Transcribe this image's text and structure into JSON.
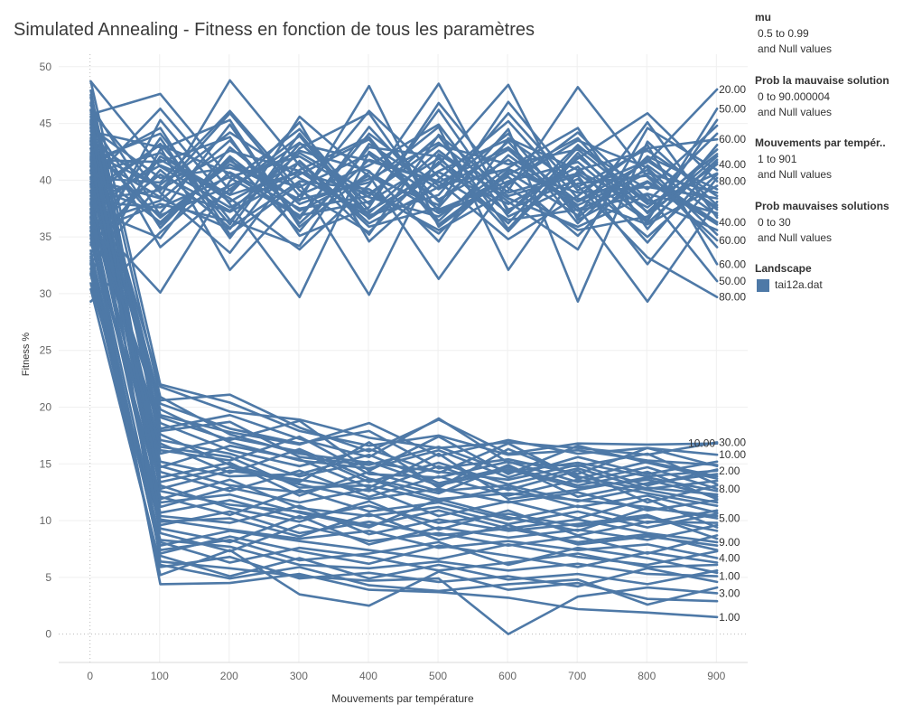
{
  "legend": [
    {
      "title": "mu",
      "lines": [
        "0.5 to 0.99",
        "and Null values"
      ]
    },
    {
      "title": "Prob la mauvaise solution",
      "lines": [
        "0 to 90.000004",
        "and Null values"
      ]
    },
    {
      "title": "Mouvements par tempér..",
      "lines": [
        "1 to 901",
        "and Null values"
      ]
    },
    {
      "title": "Prob mauvaises solutions",
      "lines": [
        "0 to 30",
        "and Null values"
      ]
    }
  ],
  "color_legend": {
    "title": "Landscape",
    "items": [
      {
        "label": "tai12a.dat",
        "color": "#4e79a7"
      }
    ]
  },
  "chart_data": {
    "type": "line",
    "title": "Simulated Annealing - Fitness en fonction de tous les paramètres",
    "xlabel": "Mouvements par température",
    "ylabel": "Fitness %",
    "x_ticks": [
      0,
      100,
      200,
      300,
      400,
      500,
      600,
      700,
      800,
      900
    ],
    "y_ticks": [
      0,
      5,
      10,
      15,
      20,
      25,
      30,
      35,
      40,
      45,
      50
    ],
    "xlim": [
      -45,
      945
    ],
    "ylim": [
      -2.5,
      51.1
    ],
    "grid": true,
    "line_color": "#4e79a7",
    "x": [
      1,
      101,
      201,
      301,
      401,
      501,
      601,
      701,
      801,
      901
    ],
    "series": [
      {
        "label": "20.00",
        "values": [
          45.8,
          47.6,
          40.2,
          36.8,
          44.1,
          39.5,
          41.0,
          38.2,
          41.6,
          48.0
        ]
      },
      {
        "label": "50.00",
        "values": [
          42.1,
          38.5,
          48.8,
          41.3,
          35.2,
          44.0,
          38.9,
          40.6,
          36.4,
          46.3
        ]
      },
      {
        "label": "60.00",
        "values": [
          38.6,
          43.2,
          36.1,
          45.6,
          40.3,
          37.8,
          46.9,
          39.4,
          42.8,
          43.6
        ]
      },
      {
        "label": "40.00",
        "values": [
          40.9,
          36.3,
          41.7,
          38.2,
          48.3,
          35.9,
          40.5,
          43.7,
          37.1,
          41.4
        ]
      },
      {
        "label": "80.00",
        "values": [
          37.2,
          41.8,
          38.4,
          33.9,
          39.6,
          48.5,
          37.2,
          41.9,
          45.9,
          39.9
        ]
      },
      {
        "label": "40.00",
        "values": [
          43.5,
          39.2,
          42.6,
          40.8,
          36.7,
          41.4,
          48.4,
          36.5,
          39.8,
          36.3
        ]
      },
      {
        "label": "60.00",
        "values": [
          35.8,
          40.5,
          37.3,
          42.4,
          38.9,
          35.6,
          39.1,
          48.2,
          40.3,
          34.7
        ]
      },
      {
        "label": "60.00",
        "values": [
          39.4,
          37.1,
          44.9,
          36.2,
          41.8,
          39.9,
          34.8,
          38.6,
          43.1,
          32.6
        ]
      },
      {
        "label": "50.00",
        "values": [
          41.3,
          44.6,
          35.2,
          39.7,
          29.9,
          42.3,
          38.4,
          35.9,
          38.7,
          31.1
        ]
      },
      {
        "label": "80.00",
        "values": [
          36.7,
          30.1,
          39.9,
          44.5,
          37.3,
          40.8,
          43.6,
          39.5,
          33.2,
          29.7
        ]
      },
      {
        "values": [
          48.7,
          41.2,
          37.6,
          40.9,
          43.8,
          36.4,
          42.2,
          37.8,
          40.6,
          38.9
        ]
      },
      {
        "values": [
          29.3,
          35.4,
          40.7,
          37.5,
          38.6,
          43.9,
          35.7,
          42.4,
          36.2,
          41.8
        ]
      },
      {
        "values": [
          46.1,
          38.9,
          33.6,
          41.7,
          36.2,
          39.4,
          44.1,
          36.7,
          41.9,
          37.4
        ]
      },
      {
        "values": [
          31.8,
          42.7,
          45.3,
          35.9,
          40.7,
          37.1,
          39.6,
          44.2,
          38.3,
          35.6
        ]
      },
      {
        "values": [
          44.9,
          34.1,
          39.2,
          43.3,
          37.9,
          46.2,
          37.4,
          40.1,
          35.0,
          40.5
        ]
      },
      {
        "values": [
          33.5,
          45.3,
          37.9,
          29.7,
          42.5,
          38.3,
          41.8,
          37.6,
          29.3,
          38.1
        ]
      },
      {
        "values": [
          40.2,
          39.8,
          46.1,
          39.1,
          35.4,
          41.6,
          36.2,
          42.9,
          39.2,
          44.8
        ]
      },
      {
        "values": [
          35.1,
          43.7,
          34.9,
          42.8,
          45.9,
          37.2,
          40.3,
          35.1,
          41.3,
          36.9
        ]
      },
      {
        "values": [
          42.8,
          36.7,
          41.4,
          38.3,
          39.8,
          44.7,
          32.1,
          40.8,
          37.6,
          42.3
        ]
      },
      {
        "values": [
          37.9,
          41.3,
          38.8,
          45.1,
          34.6,
          40.1,
          45.2,
          38.4,
          36.1,
          39.5
        ]
      },
      {
        "values": [
          45.2,
          35.8,
          42.1,
          37.3,
          40.4,
          31.3,
          39.8,
          43.5,
          41.1,
          35.2
        ]
      },
      {
        "values": [
          32.7,
          39.6,
          44.2,
          40.2,
          37.1,
          42.6,
          38.1,
          33.9,
          44.6,
          40.9
        ]
      },
      {
        "values": [
          41.7,
          44.1,
          36.5,
          34.2,
          43.2,
          39.2,
          42.7,
          37.3,
          38.8,
          37.1
        ]
      },
      {
        "values": [
          38.1,
          37.6,
          40.3,
          42.1,
          38.5,
          36.8,
          41.1,
          44.6,
          35.7,
          43.1
        ]
      },
      {
        "values": [
          44.3,
          42.9,
          32.1,
          38.7,
          41.3,
          44.9,
          36.8,
          39.7,
          40.4,
          36.3
        ]
      },
      {
        "values": [
          36.2,
          38.2,
          43.5,
          36.6,
          44.7,
          38.1,
          43.4,
          36.2,
          42.1,
          39.2
        ]
      },
      {
        "values": [
          39.9,
          46.3,
          39.1,
          43.9,
          36.6,
          40.7,
          37.9,
          41.2,
          34.5,
          41.6
        ]
      },
      {
        "values": [
          34.3,
          40.9,
          35.8,
          39.9,
          39.2,
          35.3,
          40.9,
          38.9,
          39.4,
          38.4
        ]
      },
      {
        "values": [
          43.1,
          36.1,
          41.9,
          35.5,
          42.9,
          42.1,
          35.5,
          42.1,
          37.2,
          42.7
        ]
      },
      {
        "values": [
          40.6,
          42.4,
          38.1,
          41.6,
          35.9,
          37.6,
          44.5,
          29.3,
          43.4,
          37.8
        ]
      },
      {
        "values": [
          37.4,
          34.9,
          42.9,
          37.9,
          40.1,
          43.3,
          38.6,
          40.4,
          32.6,
          40.2
        ]
      },
      {
        "values": [
          42.4,
          39.4,
          37.2,
          40.5,
          43.6,
          36.1,
          40.7,
          36.9,
          45.1,
          36.7
        ]
      },
      {
        "values": [
          39.1,
          43.1,
          40.6,
          36.9,
          38.1,
          41.9,
          37.1,
          43.1,
          38.1,
          44.1
        ]
      },
      {
        "values": [
          35.5,
          37.9,
          36.4,
          43.2,
          41.7,
          39.8,
          42.9,
          38.1,
          40.9,
          34.1
        ]
      },
      {
        "values": [
          41.8,
          41.6,
          43.8,
          35.1,
          37.6,
          46.8,
          39.3,
          35.6,
          36.8,
          42.1
        ]
      },
      {
        "values": [
          46.6,
          36.9,
          39.5,
          42.6,
          40.8,
          34.6,
          43.7,
          40.9,
          42.6,
          38.6
        ]
      },
      {
        "values": [
          38.3,
          39.1,
          45.9,
          38.6,
          46.1,
          40.3,
          36.5,
          37.4,
          39.9,
          36.1
        ]
      },
      {
        "values": [
          33.1,
          42.1,
          38.7,
          40.7,
          38.8,
          43.1,
          41.4,
          42.7,
          37.9,
          40.6
        ]
      },
      {
        "values": [
          40.1,
          38.4,
          35.7,
          44.1,
          36.9,
          38.7,
          45.9,
          39.1,
          41.7,
          37.6
        ]
      },
      {
        "values": [
          44.6,
          40.2,
          41.1,
          39.4,
          42.3,
          37.4,
          39.9,
          41.6,
          36.5,
          45.3
        ]
      },
      {
        "label": "30.00",
        "values": [
          43.2,
          21.8,
          19.6,
          18.9,
          17.3,
          16.4,
          16.9,
          16.4,
          15.8,
          16.9
        ]
      },
      {
        "label": "10.00",
        "values": [
          39.7,
          20.6,
          21.1,
          18.2,
          16.1,
          18.9,
          15.9,
          16.8,
          16.7,
          16.8
        ]
      },
      {
        "label": "10.00",
        "values": [
          45.1,
          19.3,
          17.8,
          16.7,
          18.6,
          15.7,
          17.1,
          15.9,
          16.4,
          15.8
        ]
      },
      {
        "label": "2.00",
        "values": [
          36.8,
          17.9,
          18.7,
          15.6,
          14.9,
          16.5,
          14.3,
          15.1,
          13.9,
          14.4
        ]
      },
      {
        "label": "8.00",
        "values": [
          41.9,
          16.2,
          15.3,
          17.4,
          14.1,
          13.8,
          15.2,
          13.4,
          14.7,
          12.8
        ]
      },
      {
        "label": "5.00",
        "values": [
          34.5,
          14.8,
          13.1,
          12.5,
          13.6,
          11.9,
          12.4,
          11.8,
          11.2,
          10.2
        ]
      },
      {
        "label": "9.00",
        "values": [
          47.3,
          12.6,
          11.4,
          10.8,
          9.6,
          10.9,
          9.3,
          10.1,
          8.9,
          8.1
        ]
      },
      {
        "label": "4.00",
        "values": [
          38.4,
          10.1,
          9.2,
          8.4,
          9.1,
          7.6,
          8.2,
          7.4,
          7.9,
          6.7
        ]
      },
      {
        "label": "1.00",
        "values": [
          32.6,
          8.3,
          7.7,
          6.1,
          5.8,
          6.4,
          5.6,
          6.2,
          5.3,
          5.1
        ]
      },
      {
        "label": "3.00",
        "values": [
          44.6,
          6.4,
          5.8,
          5.1,
          4.7,
          4.9,
          0.0,
          3.3,
          4.1,
          3.6
        ]
      },
      {
        "label": "1.00",
        "values": [
          35.9,
          4.4,
          4.5,
          5.3,
          3.9,
          3.7,
          3.2,
          2.2,
          1.9,
          1.5
        ]
      },
      {
        "values": [
          48.7,
          22.0,
          20.4,
          17.9,
          16.6,
          17.5,
          15.8,
          16.2,
          15.3,
          14.9
        ]
      },
      {
        "values": [
          30.9,
          9.6,
          10.8,
          8.9,
          9.9,
          8.7,
          9.3,
          8.1,
          8.8,
          7.4
        ]
      },
      {
        "values": [
          42.3,
          18.6,
          16.2,
          14.8,
          16.3,
          14.2,
          16.8,
          13.7,
          15.2,
          13.9
        ]
      },
      {
        "values": [
          37.5,
          13.4,
          14.7,
          13.2,
          11.9,
          12.8,
          11.6,
          12.5,
          10.9,
          11.8
        ]
      },
      {
        "values": [
          46.2,
          11.2,
          12.9,
          11.6,
          12.8,
          10.4,
          11.7,
          10.2,
          11.9,
          9.4
        ]
      },
      {
        "values": [
          33.8,
          7.1,
          8.6,
          7.3,
          6.2,
          7.8,
          6.9,
          5.9,
          7.2,
          6.3
        ]
      },
      {
        "values": [
          40.8,
          15.9,
          17.3,
          16.1,
          13.4,
          15.1,
          13.2,
          14.6,
          12.8,
          13.5
        ]
      },
      {
        "values": [
          44.0,
          20.3,
          18.1,
          16.8,
          17.9,
          14.6,
          15.4,
          14.1,
          16.4,
          14.8
        ]
      },
      {
        "values": [
          35.2,
          12.1,
          10.5,
          12.7,
          10.8,
          11.6,
          10.1,
          11.3,
          9.8,
          10.9
        ]
      },
      {
        "values": [
          39.1,
          8.9,
          7.3,
          9.6,
          8.2,
          8.9,
          7.8,
          8.6,
          7.1,
          8.7
        ]
      },
      {
        "values": [
          47.9,
          17.1,
          15.9,
          13.9,
          15.2,
          13.1,
          14.5,
          12.9,
          13.6,
          12.1
        ]
      },
      {
        "values": [
          31.7,
          5.9,
          6.8,
          4.9,
          5.4,
          4.6,
          5.1,
          4.2,
          5.8,
          4.6
        ]
      },
      {
        "values": [
          43.7,
          14.3,
          12.6,
          14.4,
          12.1,
          13.9,
          12.2,
          13.6,
          12.4,
          11.3
        ]
      },
      {
        "values": [
          36.3,
          10.7,
          11.8,
          10.2,
          11.3,
          9.8,
          10.6,
          9.5,
          10.3,
          9.1
        ]
      },
      {
        "values": [
          41.2,
          19.8,
          16.9,
          15.3,
          14.6,
          16.2,
          13.8,
          15.6,
          14.1,
          15.2
        ]
      },
      {
        "values": [
          34.9,
          6.9,
          5.1,
          6.7,
          4.9,
          6.1,
          4.8,
          5.3,
          4.4,
          5.6
        ]
      },
      {
        "values": [
          45.6,
          16.8,
          14.2,
          16.3,
          13.7,
          12.4,
          14.9,
          12.1,
          13.3,
          14.1
        ]
      },
      {
        "values": [
          38.9,
          11.9,
          13.6,
          11.1,
          10.4,
          11.2,
          9.7,
          10.8,
          9.4,
          10.6
        ]
      },
      {
        "values": [
          32.2,
          7.8,
          9.1,
          8.2,
          7.4,
          6.6,
          7.9,
          6.8,
          6.1,
          7.3
        ]
      },
      {
        "values": [
          42.8,
          13.8,
          15.1,
          12.2,
          14.3,
          12.6,
          13.1,
          11.7,
          12.9,
          12.3
        ]
      },
      {
        "values": [
          37.1,
          9.3,
          8.1,
          10.4,
          7.9,
          9.4,
          8.5,
          9.2,
          8.3,
          9.6
        ]
      },
      {
        "values": [
          46.8,
          18.1,
          19.3,
          17.2,
          15.6,
          19.0,
          15.1,
          14.8,
          15.9,
          13.2
        ]
      },
      {
        "values": [
          33.3,
          5.2,
          7.4,
          3.5,
          2.5,
          5.5,
          3.9,
          4.5,
          3.1,
          2.9
        ]
      },
      {
        "values": [
          40.3,
          15.2,
          13.9,
          14.1,
          15.8,
          13.3,
          14.7,
          13.1,
          14.3,
          11.9
        ]
      },
      {
        "values": [
          44.9,
          10.4,
          9.8,
          11.3,
          8.8,
          10.1,
          9.1,
          9.7,
          10.5,
          8.4
        ]
      },
      {
        "values": [
          35.6,
          8.1,
          6.3,
          7.6,
          6.8,
          5.6,
          6.3,
          7.1,
          5.9,
          6.1
        ]
      },
      {
        "values": [
          41.5,
          12.8,
          14.4,
          13.6,
          12.6,
          14.8,
          12.7,
          14.4,
          11.6,
          13.1
        ]
      },
      {
        "values": [
          38.0,
          16.5,
          15.6,
          12.9,
          13.1,
          11.7,
          12.9,
          11.2,
          12.2,
          10.7
        ]
      },
      {
        "values": [
          47.5,
          20.9,
          17.6,
          15.9,
          15.1,
          14.3,
          13.6,
          14.9,
          13.1,
          14.5
        ]
      },
      {
        "values": [
          30.4,
          6.1,
          4.9,
          5.9,
          4.3,
          3.8,
          4.4,
          4.8,
          2.6,
          4.1
        ]
      },
      {
        "values": [
          43.4,
          13.1,
          11.1,
          9.9,
          11.7,
          9.2,
          10.9,
          8.7,
          9.9,
          9.8
        ]
      },
      {
        "values": [
          36.6,
          9.9,
          10.2,
          8.6,
          10.6,
          8.3,
          9.6,
          7.9,
          8.6,
          7.8
        ]
      },
      {
        "values": [
          39.6,
          14.7,
          16.6,
          15.4,
          12.9,
          15.9,
          11.9,
          12.7,
          13.8,
          12.6
        ]
      },
      {
        "values": [
          45.3,
          17.6,
          14.9,
          13.4,
          16.9,
          12.9,
          16.3,
          13.9,
          12.7,
          11.6
        ]
      },
      {
        "values": [
          32.9,
          7.4,
          8.3,
          6.5,
          7.1,
          8.1,
          6.1,
          7.6,
          6.7,
          5.4
        ]
      },
      {
        "values": [
          42.0,
          11.6,
          12.3,
          10.7,
          9.4,
          11.9,
          10.3,
          9.1,
          11.1,
          10.4
        ]
      },
      {
        "values": [
          37.8,
          19.1,
          17.1,
          18.8,
          14.4,
          17.4,
          14.1,
          16.6,
          15.1,
          13.7
        ]
      }
    ]
  }
}
